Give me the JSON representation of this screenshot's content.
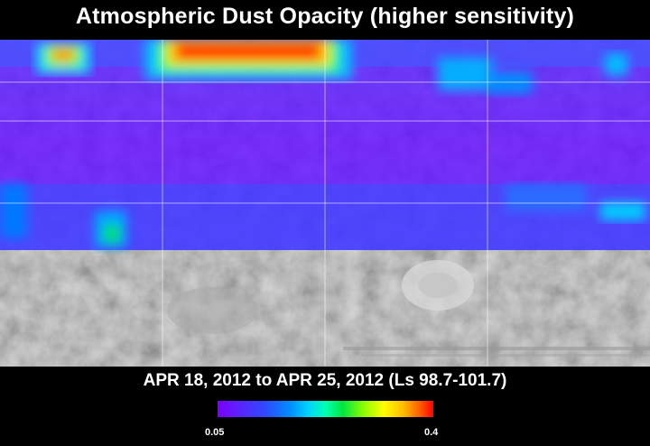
{
  "title": "Atmospheric Dust Opacity (higher sensitivity)",
  "date_range": "APR 18, 2012 to APR 25, 2012 (Ls 98.7-101.7)",
  "colorbar": {
    "min_label": "0.05",
    "max_label": "0.4"
  },
  "colors": {
    "background": "#000000",
    "low_opacity": "#7b00ff",
    "high_opacity": "#ff0000"
  }
}
